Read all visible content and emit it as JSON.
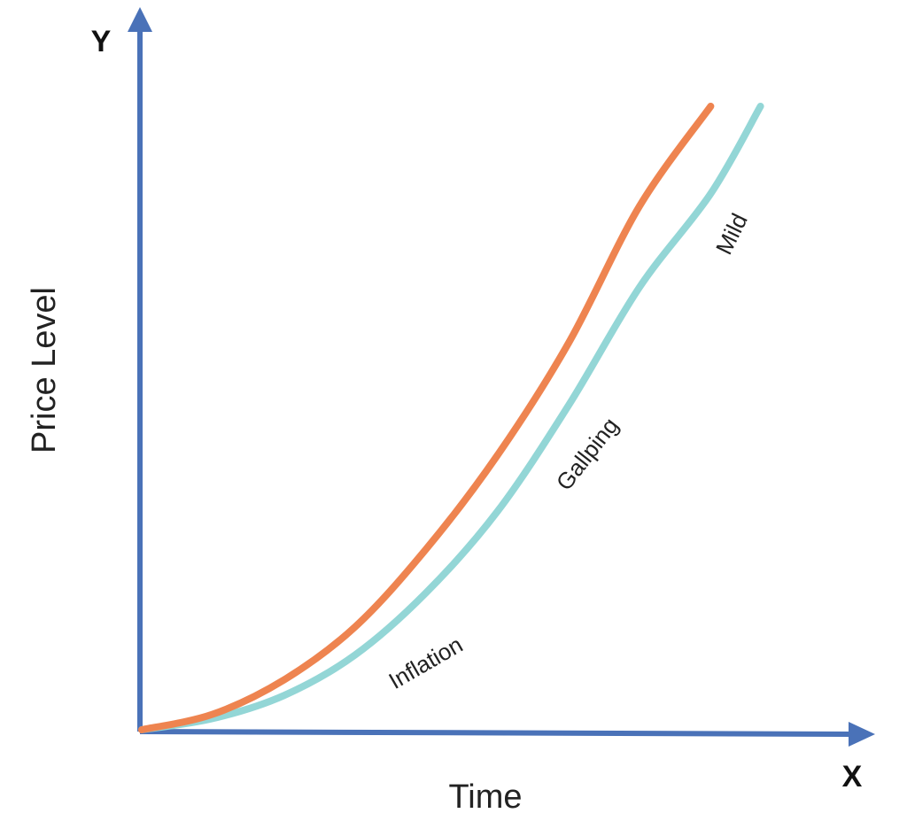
{
  "chart_data": {
    "type": "line",
    "xlabel": "Time",
    "ylabel": "Price Level",
    "x_axis_letter": "X",
    "y_axis_letter": "Y",
    "grid": false,
    "xlim": [
      0,
      1
    ],
    "ylim": [
      0,
      1
    ],
    "colors": {
      "axis": "#4a72b8",
      "orange": "#ee8450",
      "cyan": "#93d6d6"
    },
    "series": [
      {
        "color": "#ee8450",
        "x": [
          0.0,
          0.1,
          0.2,
          0.3,
          0.4,
          0.5,
          0.6,
          0.7,
          0.8
        ],
        "y": [
          0.0,
          0.025,
          0.08,
          0.165,
          0.29,
          0.44,
          0.62,
          0.84,
          1.0
        ]
      },
      {
        "color": "#93d6d6",
        "x": [
          0.0,
          0.1,
          0.2,
          0.3,
          0.4,
          0.5,
          0.6,
          0.7,
          0.8,
          0.87
        ],
        "y": [
          0.0,
          0.018,
          0.055,
          0.12,
          0.22,
          0.35,
          0.52,
          0.71,
          0.86,
          1.0
        ]
      }
    ],
    "annotations": [
      {
        "text": "Inflation"
      },
      {
        "text": "Gallping"
      },
      {
        "text": "Mild"
      }
    ]
  }
}
